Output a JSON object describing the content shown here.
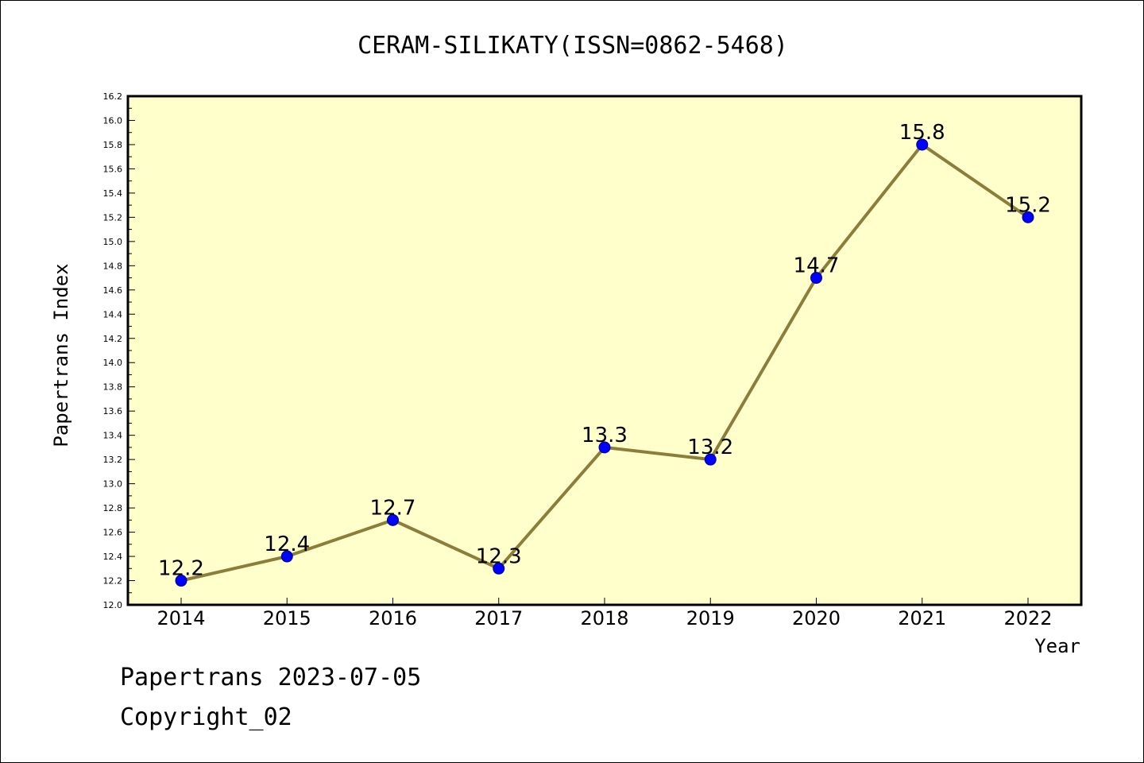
{
  "chart_data": {
    "type": "line",
    "title": "CERAM-SILIKATY(ISSN=0862-5468)",
    "xlabel": "Year",
    "ylabel": "Papertrans Index",
    "x": [
      "2014",
      "2015",
      "2016",
      "2017",
      "2018",
      "2019",
      "2020",
      "2021",
      "2022"
    ],
    "series": [
      {
        "values": [
          12.2,
          12.4,
          12.7,
          12.3,
          13.3,
          13.2,
          14.7,
          15.8,
          15.2
        ],
        "data_labels": [
          "12.2",
          "12.4",
          "12.7",
          "12.3",
          "13.3",
          "13.2",
          "14.7",
          "15.8",
          "15.2"
        ]
      }
    ],
    "ylim": [
      12.0,
      16.2
    ],
    "yticks": [
      "12.0",
      "12.2",
      "12.4",
      "12.6",
      "12.8",
      "13.0",
      "13.2",
      "13.4",
      "13.6",
      "13.8",
      "14.0",
      "14.2",
      "14.4",
      "14.6",
      "14.8",
      "15.0",
      "15.2",
      "15.4",
      "15.6",
      "15.8",
      "16.0",
      "16.2"
    ],
    "grid": false,
    "legend": "none",
    "colors": {
      "plot_background": "#ffffcc",
      "line": "#8b7d3a",
      "marker": "#0000ff"
    }
  },
  "footer": {
    "line1": "Papertrans 2023-07-05",
    "line2": "Copyright_02"
  }
}
